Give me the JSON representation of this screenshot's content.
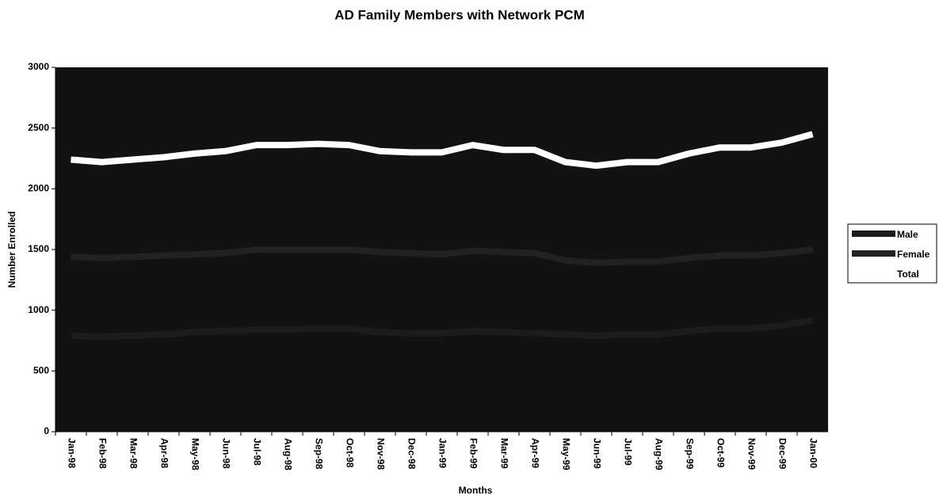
{
  "chart_data": {
    "type": "line",
    "title": "AD Family Members with Network PCM",
    "x_label": "Months",
    "y_label": "Number Enrolled",
    "categories": [
      "Jan-98",
      "Feb-98",
      "Mar-98",
      "Apr-98",
      "May-98",
      "Jun-98",
      "Jul-98",
      "Aug-98",
      "Sep-98",
      "Oct-98",
      "Nov-98",
      "Dec-98",
      "Jan-99",
      "Feb-99",
      "Mar-99",
      "Apr-99",
      "May-99",
      "Jun-99",
      "Jul-99",
      "Aug-99",
      "Sep-99",
      "Oct-99",
      "Nov-99",
      "Dec-99",
      "Jan-00"
    ],
    "series": [
      {
        "name": "Male",
        "color": "#1c1c1c",
        "values": [
          790,
          780,
          790,
          800,
          820,
          830,
          840,
          840,
          850,
          850,
          820,
          810,
          810,
          830,
          820,
          810,
          800,
          790,
          800,
          800,
          830,
          850,
          850,
          870,
          920
        ]
      },
      {
        "name": "Female",
        "color": "#222222",
        "values": [
          1440,
          1430,
          1440,
          1450,
          1460,
          1470,
          1500,
          1500,
          1500,
          1500,
          1480,
          1470,
          1460,
          1490,
          1480,
          1470,
          1410,
          1390,
          1400,
          1400,
          1430,
          1450,
          1450,
          1470,
          1500
        ]
      },
      {
        "name": "Total",
        "color": "#ffffff",
        "values": [
          2240,
          2220,
          2240,
          2260,
          2290,
          2310,
          2360,
          2360,
          2370,
          2360,
          2310,
          2300,
          2300,
          2360,
          2320,
          2320,
          2220,
          2190,
          2220,
          2220,
          2290,
          2340,
          2340,
          2380,
          2450
        ]
      }
    ],
    "ylim": [
      0,
      3000
    ],
    "yticks": [
      0,
      500,
      1000,
      1500,
      2000,
      2500,
      3000
    ],
    "plot_background": "#121212",
    "legend": "right"
  }
}
